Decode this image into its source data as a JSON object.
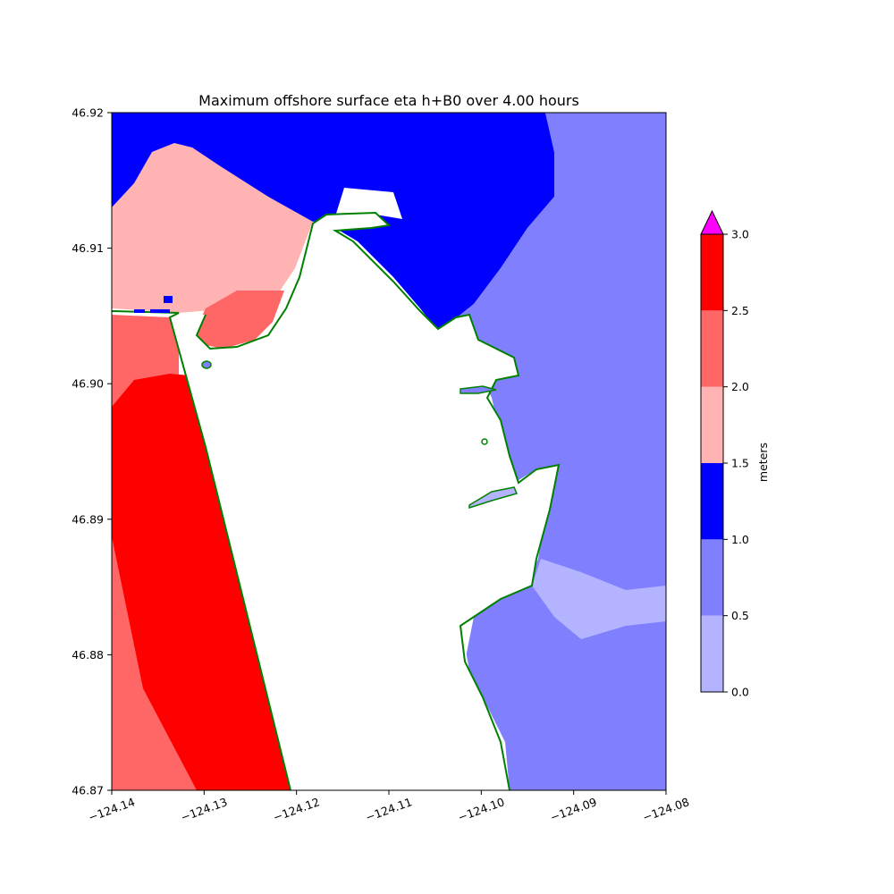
{
  "chart_data": {
    "type": "heatmap",
    "title": "Maximum offshore surface eta h+B0 over 4.00 hours",
    "xlim": [
      -124.14,
      -124.08
    ],
    "ylim": [
      46.87,
      46.92
    ],
    "x_ticks": [
      -124.14,
      -124.13,
      -124.12,
      -124.11,
      -124.1,
      -124.09,
      -124.08
    ],
    "x_tick_labels": [
      "−124.14",
      "−124.13",
      "−124.12",
      "−124.11",
      "−124.10",
      "−124.09",
      "−124.08"
    ],
    "y_ticks": [
      46.87,
      46.88,
      46.89,
      46.9,
      46.91,
      46.92
    ],
    "y_tick_labels": [
      "46.87",
      "46.88",
      "46.89",
      "46.90",
      "46.91",
      "46.92"
    ],
    "colorbar": {
      "label": "meters",
      "extend": "max",
      "over_color": "#ff00ff",
      "levels": [
        0.0,
        0.5,
        1.0,
        1.5,
        2.0,
        2.5,
        3.0
      ],
      "level_labels": [
        "0.0",
        "0.5",
        "1.0",
        "1.5",
        "2.0",
        "2.5",
        "3.0"
      ],
      "colors": [
        "#b3b3ff",
        "#8080ff",
        "#0000ff",
        "#ffb3b3",
        "#ff6666",
        "#ff0000"
      ]
    },
    "land_color": "#ffffff",
    "shoreline_color": "#008000"
  }
}
